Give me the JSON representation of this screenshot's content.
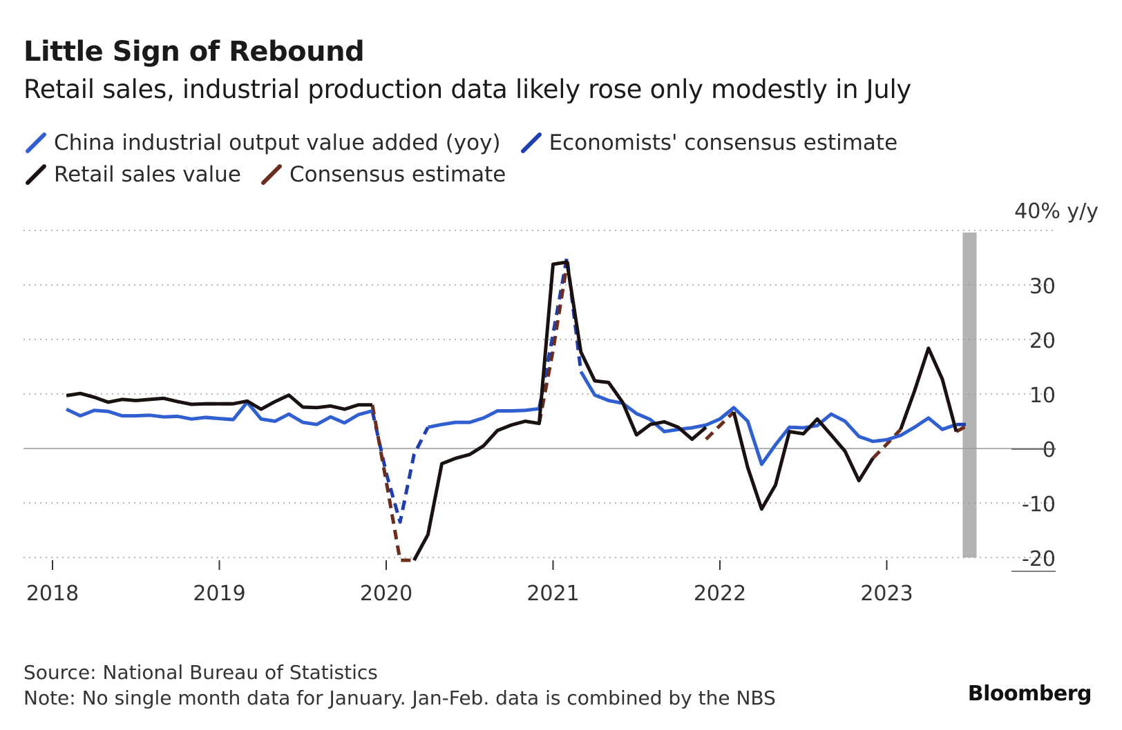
{
  "title": "Little Sign of Rebound",
  "subtitle": "Retail sales, industrial production data likely rose only modestly in July",
  "legend": [
    {
      "label": "China industrial output value added (yoy)",
      "color": "#2f5fd0"
    },
    {
      "label": "Economists' consensus estimate",
      "color": "#1f3fb0"
    },
    {
      "label": "Retail sales value",
      "color": "#1a1210"
    },
    {
      "label": "Consensus estimate",
      "color": "#6b2e1e"
    }
  ],
  "y_unit": "40% y/y",
  "source": "Source: National Bureau of Statistics",
  "note": "Note: No single month data for January. Jan-Feb. data is combined by the NBS",
  "brand": "Bloomberg",
  "chart_data": {
    "type": "line",
    "ylim": [
      -20,
      40
    ],
    "yticks": [
      30,
      20,
      10,
      0,
      -10,
      -20
    ],
    "xticks": [
      "2018",
      "2019",
      "2020",
      "2021",
      "2022",
      "2023"
    ],
    "grid": true,
    "y_axis_position": "right",
    "highlight_band": {
      "from": "2023-06-15",
      "to": "2023-07-15",
      "color": "#b3b3b3"
    },
    "series": [
      {
        "name": "China industrial output value added (yoy)",
        "color": "#2f5fd0",
        "style": "solid",
        "points": [
          [
            "2018-02",
            7.2
          ],
          [
            "2018-03",
            6.0
          ],
          [
            "2018-04",
            7.0
          ],
          [
            "2018-05",
            6.8
          ],
          [
            "2018-06",
            6.0
          ],
          [
            "2018-07",
            6.0
          ],
          [
            "2018-08",
            6.1
          ],
          [
            "2018-09",
            5.8
          ],
          [
            "2018-10",
            5.9
          ],
          [
            "2018-11",
            5.4
          ],
          [
            "2018-12",
            5.7
          ],
          [
            "2019-01",
            5.5
          ],
          [
            "2019-02",
            5.3
          ],
          [
            "2019-03",
            8.5
          ],
          [
            "2019-04",
            5.4
          ],
          [
            "2019-05",
            5.0
          ],
          [
            "2019-06",
            6.3
          ],
          [
            "2019-07",
            4.8
          ],
          [
            "2019-08",
            4.4
          ],
          [
            "2019-09",
            5.8
          ],
          [
            "2019-10",
            4.7
          ],
          [
            "2019-11",
            6.2
          ],
          [
            "2019-12",
            6.9
          ],
          [
            "2020-04",
            3.9
          ],
          [
            "2020-05",
            4.4
          ],
          [
            "2020-06",
            4.8
          ],
          [
            "2020-07",
            4.8
          ],
          [
            "2020-08",
            5.6
          ],
          [
            "2020-09",
            6.9
          ],
          [
            "2020-10",
            6.9
          ],
          [
            "2020-11",
            7.0
          ],
          [
            "2020-12",
            7.3
          ],
          [
            "2021-03",
            14.1
          ],
          [
            "2021-04",
            9.8
          ],
          [
            "2021-05",
            8.8
          ],
          [
            "2021-06",
            8.3
          ],
          [
            "2021-07",
            6.4
          ],
          [
            "2021-08",
            5.3
          ],
          [
            "2021-09",
            3.1
          ],
          [
            "2021-10",
            3.5
          ],
          [
            "2021-11",
            3.8
          ],
          [
            "2021-12",
            4.3
          ],
          [
            "2022-01",
            5.4
          ],
          [
            "2022-02",
            7.5
          ],
          [
            "2022-03",
            5.0
          ],
          [
            "2022-04",
            -2.9
          ],
          [
            "2022-05",
            0.7
          ],
          [
            "2022-06",
            3.9
          ],
          [
            "2022-07",
            3.8
          ],
          [
            "2022-08",
            4.2
          ],
          [
            "2022-09",
            6.3
          ],
          [
            "2022-10",
            5.0
          ],
          [
            "2022-11",
            2.2
          ],
          [
            "2022-12",
            1.3
          ],
          [
            "2023-01",
            1.6
          ],
          [
            "2023-02",
            2.4
          ],
          [
            "2023-03",
            3.9
          ],
          [
            "2023-04",
            5.6
          ],
          [
            "2023-05",
            3.5
          ],
          [
            "2023-06",
            4.4
          ]
        ]
      },
      {
        "name": "Economists' consensus estimate",
        "color": "#1f3fb0",
        "style": "dashed",
        "points": [
          [
            "2018-12",
            5.7
          ],
          [
            "2019-01",
            5.5
          ],
          [
            "2019-02",
            5.3
          ],
          [
            "2019-12",
            6.9
          ],
          [
            "2020-01",
            -4.5
          ],
          [
            "2020-02",
            -13.5
          ],
          [
            "2020-03",
            -1.1
          ],
          [
            "2020-04",
            3.9
          ],
          [
            "2020-12",
            7.3
          ],
          [
            "2021-01",
            21.0
          ],
          [
            "2021-02",
            35.1
          ],
          [
            "2021-03",
            14.1
          ],
          [
            "2022-01",
            5.4
          ],
          [
            "2022-02",
            7.5
          ],
          [
            "2023-06",
            4.4
          ],
          [
            "2023-07",
            4.4
          ]
        ]
      },
      {
        "name": "Retail sales value",
        "color": "#1a1210",
        "style": "solid",
        "points": [
          [
            "2018-02",
            9.7
          ],
          [
            "2018-03",
            10.1
          ],
          [
            "2018-04",
            9.4
          ],
          [
            "2018-05",
            8.5
          ],
          [
            "2018-06",
            9.0
          ],
          [
            "2018-07",
            8.8
          ],
          [
            "2018-08",
            9.0
          ],
          [
            "2018-09",
            9.2
          ],
          [
            "2018-10",
            8.6
          ],
          [
            "2018-11",
            8.1
          ],
          [
            "2018-12",
            8.2
          ],
          [
            "2019-01",
            8.2
          ],
          [
            "2019-02",
            8.2
          ],
          [
            "2019-03",
            8.7
          ],
          [
            "2019-04",
            7.2
          ],
          [
            "2019-05",
            8.6
          ],
          [
            "2019-06",
            9.8
          ],
          [
            "2019-07",
            7.6
          ],
          [
            "2019-08",
            7.5
          ],
          [
            "2019-09",
            7.8
          ],
          [
            "2019-10",
            7.2
          ],
          [
            "2019-11",
            8.0
          ],
          [
            "2019-12",
            8.0
          ],
          [
            "2020-03",
            -20.5
          ],
          [
            "2020-04",
            -15.8
          ],
          [
            "2020-05",
            -2.8
          ],
          [
            "2020-06",
            -1.8
          ],
          [
            "2020-07",
            -1.1
          ],
          [
            "2020-08",
            0.5
          ],
          [
            "2020-09",
            3.3
          ],
          [
            "2020-10",
            4.3
          ],
          [
            "2020-11",
            5.0
          ],
          [
            "2020-12",
            4.6
          ],
          [
            "2021-01",
            33.8
          ],
          [
            "2021-02",
            34.2
          ],
          [
            "2021-03",
            17.7
          ],
          [
            "2021-04",
            12.4
          ],
          [
            "2021-05",
            12.1
          ],
          [
            "2021-06",
            8.5
          ],
          [
            "2021-07",
            2.5
          ],
          [
            "2021-08",
            4.4
          ],
          [
            "2021-09",
            4.9
          ],
          [
            "2021-10",
            3.9
          ],
          [
            "2021-11",
            1.7
          ],
          [
            "2021-12",
            3.9
          ],
          [
            "2022-02",
            6.7
          ],
          [
            "2022-03",
            -3.5
          ],
          [
            "2022-04",
            -11.1
          ],
          [
            "2022-05",
            -6.7
          ],
          [
            "2022-06",
            3.1
          ],
          [
            "2022-07",
            2.7
          ],
          [
            "2022-08",
            5.4
          ],
          [
            "2022-09",
            2.5
          ],
          [
            "2022-10",
            -0.5
          ],
          [
            "2022-11",
            -5.9
          ],
          [
            "2022-12",
            -1.8
          ],
          [
            "2023-02",
            3.5
          ],
          [
            "2023-03",
            10.6
          ],
          [
            "2023-04",
            18.4
          ],
          [
            "2023-05",
            12.7
          ],
          [
            "2023-06",
            3.1
          ]
        ]
      },
      {
        "name": "Consensus estimate",
        "color": "#6b2e1e",
        "style": "dashed",
        "points": [
          [
            "2018-12",
            8.2
          ],
          [
            "2019-01",
            8.2
          ],
          [
            "2019-02",
            8.2
          ],
          [
            "2019-12",
            8.0
          ],
          [
            "2020-01",
            -6.0
          ],
          [
            "2020-02",
            -20.5
          ],
          [
            "2020-03",
            -20.5
          ],
          [
            "2020-12",
            4.6
          ],
          [
            "2021-01",
            18.0
          ],
          [
            "2021-02",
            33.8
          ],
          [
            "2021-12",
            1.7
          ],
          [
            "2022-01",
            4.2
          ],
          [
            "2022-02",
            6.7
          ],
          [
            "2022-12",
            -1.8
          ],
          [
            "2023-01",
            0.8
          ],
          [
            "2023-02",
            3.5
          ],
          [
            "2023-06",
            3.1
          ],
          [
            "2023-07",
            4.5
          ]
        ]
      }
    ]
  }
}
